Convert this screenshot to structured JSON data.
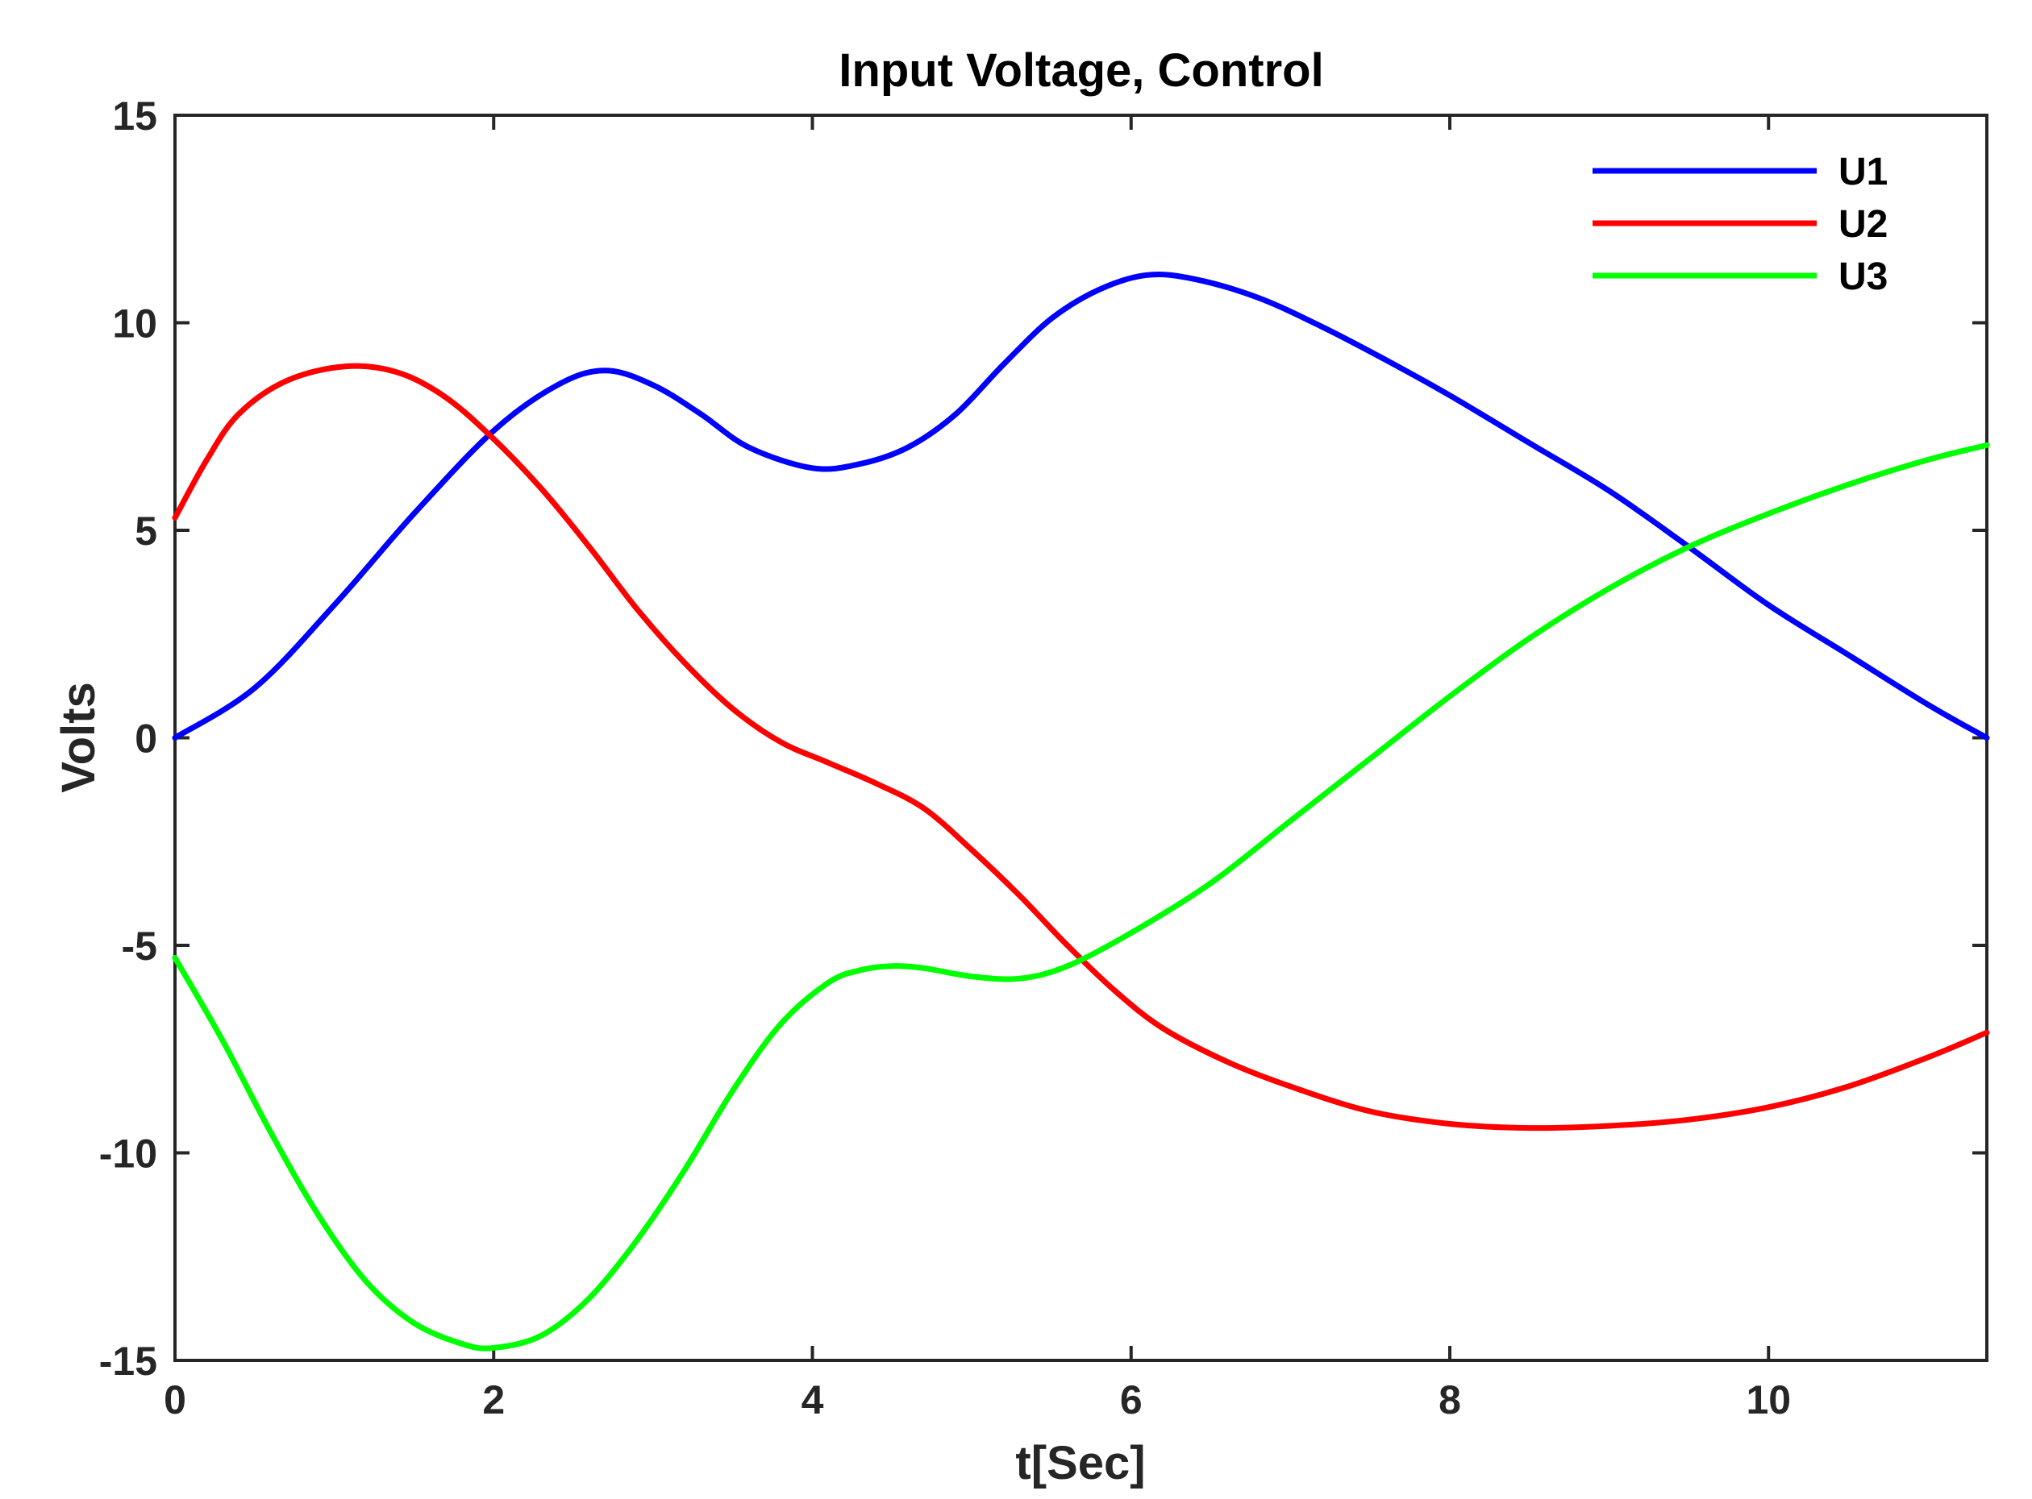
{
  "chart_data": {
    "type": "line",
    "title": "Input Voltage, Control",
    "xlabel": "t[Sec]",
    "ylabel": "Volts",
    "xlim": [
      0,
      11.37
    ],
    "ylim": [
      -15,
      15
    ],
    "xticks": [
      0,
      2,
      4,
      6,
      8,
      10
    ],
    "yticks": [
      -15,
      -10,
      -5,
      0,
      5,
      10,
      15
    ],
    "grid": false,
    "legend_position": "top-right",
    "series": [
      {
        "name": "U1",
        "color": "#0000ff",
        "points": [
          [
            0,
            0
          ],
          [
            0.5,
            1.2
          ],
          [
            1,
            3.2
          ],
          [
            1.5,
            5.4
          ],
          [
            2,
            7.4
          ],
          [
            2.4,
            8.5
          ],
          [
            2.7,
            8.85
          ],
          [
            3,
            8.5
          ],
          [
            3.3,
            7.8
          ],
          [
            3.6,
            7.0
          ],
          [
            4,
            6.5
          ],
          [
            4.3,
            6.6
          ],
          [
            4.6,
            7.0
          ],
          [
            4.9,
            7.8
          ],
          [
            5.2,
            9.0
          ],
          [
            5.5,
            10.1
          ],
          [
            5.8,
            10.8
          ],
          [
            6.1,
            11.15
          ],
          [
            6.4,
            11.05
          ],
          [
            6.8,
            10.6
          ],
          [
            7.2,
            9.9
          ],
          [
            7.6,
            9.1
          ],
          [
            8,
            8.25
          ],
          [
            8.5,
            7.1
          ],
          [
            9,
            5.95
          ],
          [
            9.5,
            4.6
          ],
          [
            10,
            3.2
          ],
          [
            10.5,
            2.0
          ],
          [
            11,
            0.8
          ],
          [
            11.37,
            0
          ]
        ]
      },
      {
        "name": "U2",
        "color": "#ff0000",
        "points": [
          [
            0,
            5.3
          ],
          [
            0.2,
            6.7
          ],
          [
            0.4,
            7.8
          ],
          [
            0.7,
            8.6
          ],
          [
            1.07,
            8.95
          ],
          [
            1.4,
            8.8
          ],
          [
            1.7,
            8.2
          ],
          [
            2,
            7.2
          ],
          [
            2.3,
            6.0
          ],
          [
            2.6,
            4.6
          ],
          [
            2.9,
            3.1
          ],
          [
            3.2,
            1.8
          ],
          [
            3.5,
            0.7
          ],
          [
            3.8,
            -0.1
          ],
          [
            4.1,
            -0.6
          ],
          [
            4.4,
            -1.1
          ],
          [
            4.7,
            -1.7
          ],
          [
            5,
            -2.7
          ],
          [
            5.3,
            -3.8
          ],
          [
            5.6,
            -5.0
          ],
          [
            5.9,
            -6.1
          ],
          [
            6.2,
            -7.0
          ],
          [
            6.6,
            -7.8
          ],
          [
            7,
            -8.4
          ],
          [
            7.5,
            -9.0
          ],
          [
            8,
            -9.3
          ],
          [
            8.5,
            -9.4
          ],
          [
            9,
            -9.35
          ],
          [
            9.5,
            -9.2
          ],
          [
            10,
            -8.9
          ],
          [
            10.5,
            -8.4
          ],
          [
            11,
            -7.7
          ],
          [
            11.37,
            -7.1
          ]
        ]
      },
      {
        "name": "U3",
        "color": "#00ff00",
        "points": [
          [
            0,
            -5.3
          ],
          [
            0.3,
            -7.3
          ],
          [
            0.6,
            -9.5
          ],
          [
            0.9,
            -11.5
          ],
          [
            1.2,
            -13.1
          ],
          [
            1.5,
            -14.1
          ],
          [
            1.8,
            -14.6
          ],
          [
            2,
            -14.7
          ],
          [
            2.3,
            -14.4
          ],
          [
            2.6,
            -13.5
          ],
          [
            2.9,
            -12.1
          ],
          [
            3.2,
            -10.4
          ],
          [
            3.5,
            -8.5
          ],
          [
            3.8,
            -6.9
          ],
          [
            4.1,
            -5.9
          ],
          [
            4.3,
            -5.6
          ],
          [
            4.5,
            -5.5
          ],
          [
            4.7,
            -5.55
          ],
          [
            5,
            -5.75
          ],
          [
            5.3,
            -5.8
          ],
          [
            5.6,
            -5.5
          ],
          [
            6,
            -4.7
          ],
          [
            6.5,
            -3.5
          ],
          [
            7,
            -2.0
          ],
          [
            7.5,
            -0.5
          ],
          [
            8,
            1.0
          ],
          [
            8.5,
            2.4
          ],
          [
            9,
            3.6
          ],
          [
            9.5,
            4.6
          ],
          [
            10,
            5.4
          ],
          [
            10.5,
            6.1
          ],
          [
            11,
            6.7
          ],
          [
            11.37,
            7.05
          ]
        ]
      }
    ]
  }
}
